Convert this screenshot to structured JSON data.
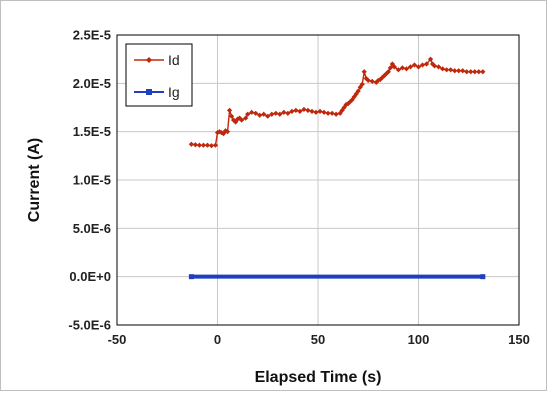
{
  "chart_data": {
    "type": "line",
    "xlabel": "Elapsed Time (s)",
    "ylabel": "Current (A)",
    "xlim": [
      -50,
      150
    ],
    "ylim": [
      -5e-06,
      2.5e-05
    ],
    "x_ticks": [
      -50,
      0,
      50,
      100,
      150
    ],
    "x_tick_labels": [
      "-50",
      "0",
      "50",
      "100",
      "150"
    ],
    "y_ticks": [
      -5e-06,
      0,
      5e-06,
      1e-05,
      1.5e-05,
      2e-05,
      2.5e-05
    ],
    "y_tick_labels": [
      "-5.0E-6",
      "0.0E+0",
      "5.0E-6",
      "1.0E-5",
      "1.5E-5",
      "2.0E-5",
      "2.5E-5"
    ],
    "grid": true,
    "legend_position": "top-left",
    "series": [
      {
        "name": "Id",
        "color": "#c0280c",
        "marker": "diamond",
        "points": [
          [
            -13,
            1.37e-05
          ],
          [
            -11,
            1.365e-05
          ],
          [
            -9,
            1.36e-05
          ],
          [
            -7,
            1.36e-05
          ],
          [
            -5,
            1.36e-05
          ],
          [
            -3,
            1.355e-05
          ],
          [
            -1,
            1.36e-05
          ],
          [
            0,
            1.49e-05
          ],
          [
            1,
            1.5e-05
          ],
          [
            2,
            1.49e-05
          ],
          [
            3,
            1.48e-05
          ],
          [
            4,
            1.51e-05
          ],
          [
            5,
            1.5e-05
          ],
          [
            6,
            1.72e-05
          ],
          [
            7,
            1.66e-05
          ],
          [
            8,
            1.62e-05
          ],
          [
            9,
            1.6e-05
          ],
          [
            10,
            1.63e-05
          ],
          [
            11,
            1.64e-05
          ],
          [
            12,
            1.62e-05
          ],
          [
            14,
            1.64e-05
          ],
          [
            15,
            1.68e-05
          ],
          [
            17,
            1.7e-05
          ],
          [
            19,
            1.69e-05
          ],
          [
            21,
            1.67e-05
          ],
          [
            23,
            1.68e-05
          ],
          [
            25,
            1.66e-05
          ],
          [
            27,
            1.68e-05
          ],
          [
            29,
            1.69e-05
          ],
          [
            31,
            1.68e-05
          ],
          [
            33,
            1.7e-05
          ],
          [
            35,
            1.69e-05
          ],
          [
            37,
            1.71e-05
          ],
          [
            39,
            1.72e-05
          ],
          [
            41,
            1.71e-05
          ],
          [
            43,
            1.73e-05
          ],
          [
            45,
            1.72e-05
          ],
          [
            47,
            1.71e-05
          ],
          [
            49,
            1.7e-05
          ],
          [
            51,
            1.71e-05
          ],
          [
            53,
            1.7e-05
          ],
          [
            55,
            1.69e-05
          ],
          [
            57,
            1.69e-05
          ],
          [
            59,
            1.68e-05
          ],
          [
            61,
            1.69e-05
          ],
          [
            62,
            1.72e-05
          ],
          [
            63,
            1.75e-05
          ],
          [
            64,
            1.78e-05
          ],
          [
            65,
            1.79e-05
          ],
          [
            66,
            1.81e-05
          ],
          [
            67,
            1.83e-05
          ],
          [
            68,
            1.86e-05
          ],
          [
            69,
            1.89e-05
          ],
          [
            70,
            1.92e-05
          ],
          [
            71,
            1.96e-05
          ],
          [
            72,
            1.99e-05
          ],
          [
            73,
            2.12e-05
          ],
          [
            74,
            2.05e-05
          ],
          [
            75,
            2.03e-05
          ],
          [
            77,
            2.02e-05
          ],
          [
            79,
            2.01e-05
          ],
          [
            80,
            2.03e-05
          ],
          [
            81,
            2.04e-05
          ],
          [
            82,
            2.06e-05
          ],
          [
            83,
            2.08e-05
          ],
          [
            84,
            2.1e-05
          ],
          [
            85,
            2.12e-05
          ],
          [
            86,
            2.16e-05
          ],
          [
            87,
            2.2e-05
          ],
          [
            88,
            2.17e-05
          ],
          [
            90,
            2.14e-05
          ],
          [
            92,
            2.16e-05
          ],
          [
            94,
            2.15e-05
          ],
          [
            96,
            2.17e-05
          ],
          [
            98,
            2.19e-05
          ],
          [
            100,
            2.17e-05
          ],
          [
            102,
            2.19e-05
          ],
          [
            104,
            2.2e-05
          ],
          [
            106,
            2.25e-05
          ],
          [
            107,
            2.2e-05
          ],
          [
            108,
            2.18e-05
          ],
          [
            110,
            2.17e-05
          ],
          [
            112,
            2.15e-05
          ],
          [
            114,
            2.14e-05
          ],
          [
            116,
            2.14e-05
          ],
          [
            118,
            2.13e-05
          ],
          [
            120,
            2.13e-05
          ],
          [
            122,
            2.13e-05
          ],
          [
            124,
            2.12e-05
          ],
          [
            126,
            2.12e-05
          ],
          [
            128,
            2.12e-05
          ],
          [
            130,
            2.12e-05
          ],
          [
            132,
            2.12e-05
          ]
        ]
      },
      {
        "name": "Ig",
        "color": "#1f3fbf",
        "marker": "square",
        "points": [
          [
            -13,
            0
          ],
          [
            132,
            0
          ]
        ]
      }
    ]
  }
}
